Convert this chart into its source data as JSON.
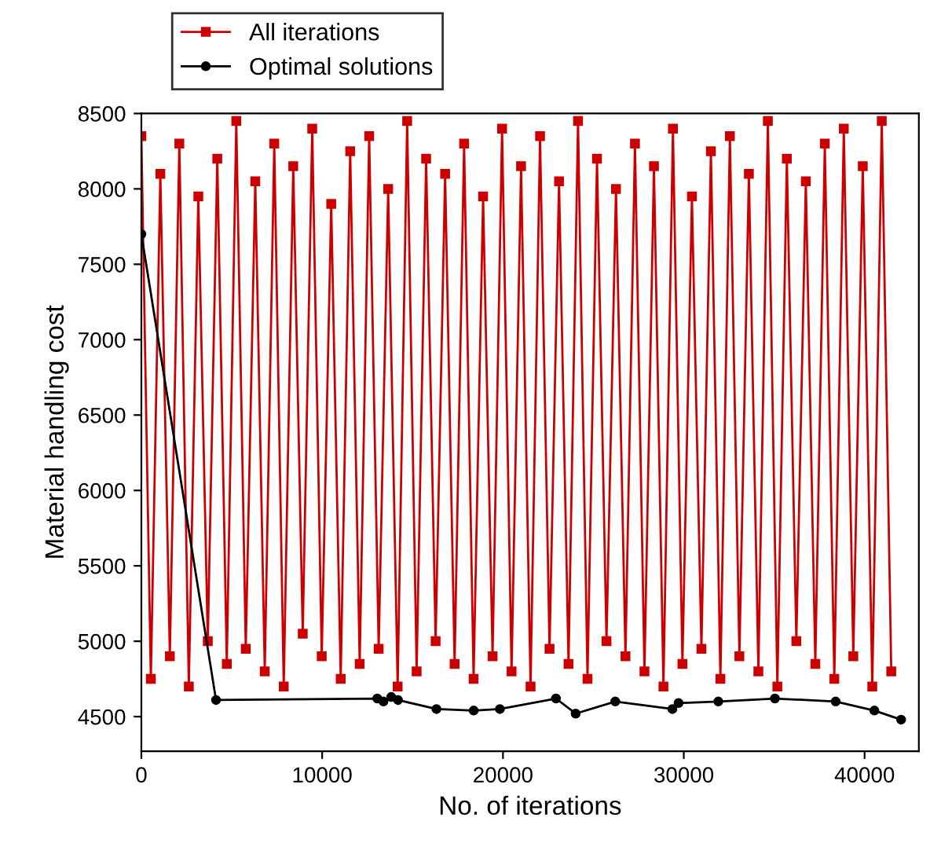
{
  "chart_data": {
    "type": "line",
    "xlabel": "No. of iterations",
    "ylabel": "Material handling cost",
    "xlim": [
      0,
      43000
    ],
    "xticks": [
      0,
      10000,
      20000,
      30000,
      40000
    ],
    "ylim": [
      4270,
      8500
    ],
    "yticks": [
      4500,
      5000,
      5500,
      6000,
      6500,
      7000,
      7500,
      8000,
      8500
    ],
    "grid": false,
    "legend": "top",
    "line_style": "solid",
    "series": [
      {
        "name": "All iterations",
        "color": "#cc0000",
        "marker": "square",
        "x": [
          0,
          525,
          1050,
          1575,
          2100,
          2625,
          3150,
          3675,
          4200,
          4725,
          5250,
          5775,
          6300,
          6825,
          7350,
          7875,
          8400,
          8925,
          9450,
          9975,
          10500,
          11025,
          11550,
          12075,
          12600,
          13125,
          13650,
          14175,
          14700,
          15225,
          15750,
          16275,
          16800,
          17325,
          17850,
          18375,
          18900,
          19425,
          19950,
          20475,
          21000,
          21525,
          22050,
          22575,
          23100,
          23625,
          24150,
          24675,
          25200,
          25725,
          26250,
          26775,
          27300,
          27825,
          28350,
          28875,
          29400,
          29925,
          30450,
          30975,
          31500,
          32025,
          32550,
          33075,
          33600,
          34125,
          34650,
          35175,
          35700,
          36225,
          36750,
          37275,
          37800,
          38325,
          38850,
          39375,
          39900,
          40425,
          40950,
          41475
        ],
        "values": [
          8350,
          4750,
          8100,
          4900,
          8300,
          4700,
          7950,
          5000,
          8200,
          4850,
          8450,
          4950,
          8050,
          4800,
          8300,
          4700,
          8150,
          5050,
          8400,
          4900,
          7900,
          4750,
          8250,
          4850,
          8350,
          4950,
          8000,
          4700,
          8450,
          4800,
          8200,
          5000,
          8100,
          4850,
          8300,
          4750,
          7950,
          4900,
          8400,
          4800,
          8150,
          4700,
          8350,
          4950,
          8050,
          4850,
          8450,
          4750,
          8200,
          5000,
          8000,
          4900,
          8300,
          4800,
          8150,
          4700,
          8400,
          4850,
          7950,
          4950,
          8250,
          4750,
          8350,
          4900,
          8100,
          4800,
          8450,
          4700,
          8200,
          5000,
          8050,
          4850,
          8300,
          4750,
          8400,
          4900,
          8150,
          4700,
          8450,
          4800
        ]
      },
      {
        "name": "Optimal solutions",
        "color": "#000000",
        "marker": "circle",
        "x": [
          0,
          4130,
          13050,
          13390,
          13820,
          14190,
          16320,
          18380,
          19830,
          22930,
          24020,
          26210,
          29370,
          29710,
          31910,
          35040,
          38400,
          40540,
          42020
        ],
        "values": [
          7700,
          4610,
          4620,
          4600,
          4630,
          4610,
          4550,
          4540,
          4550,
          4620,
          4520,
          4600,
          4550,
          4590,
          4600,
          4620,
          4600,
          4540,
          4480
        ]
      }
    ]
  }
}
